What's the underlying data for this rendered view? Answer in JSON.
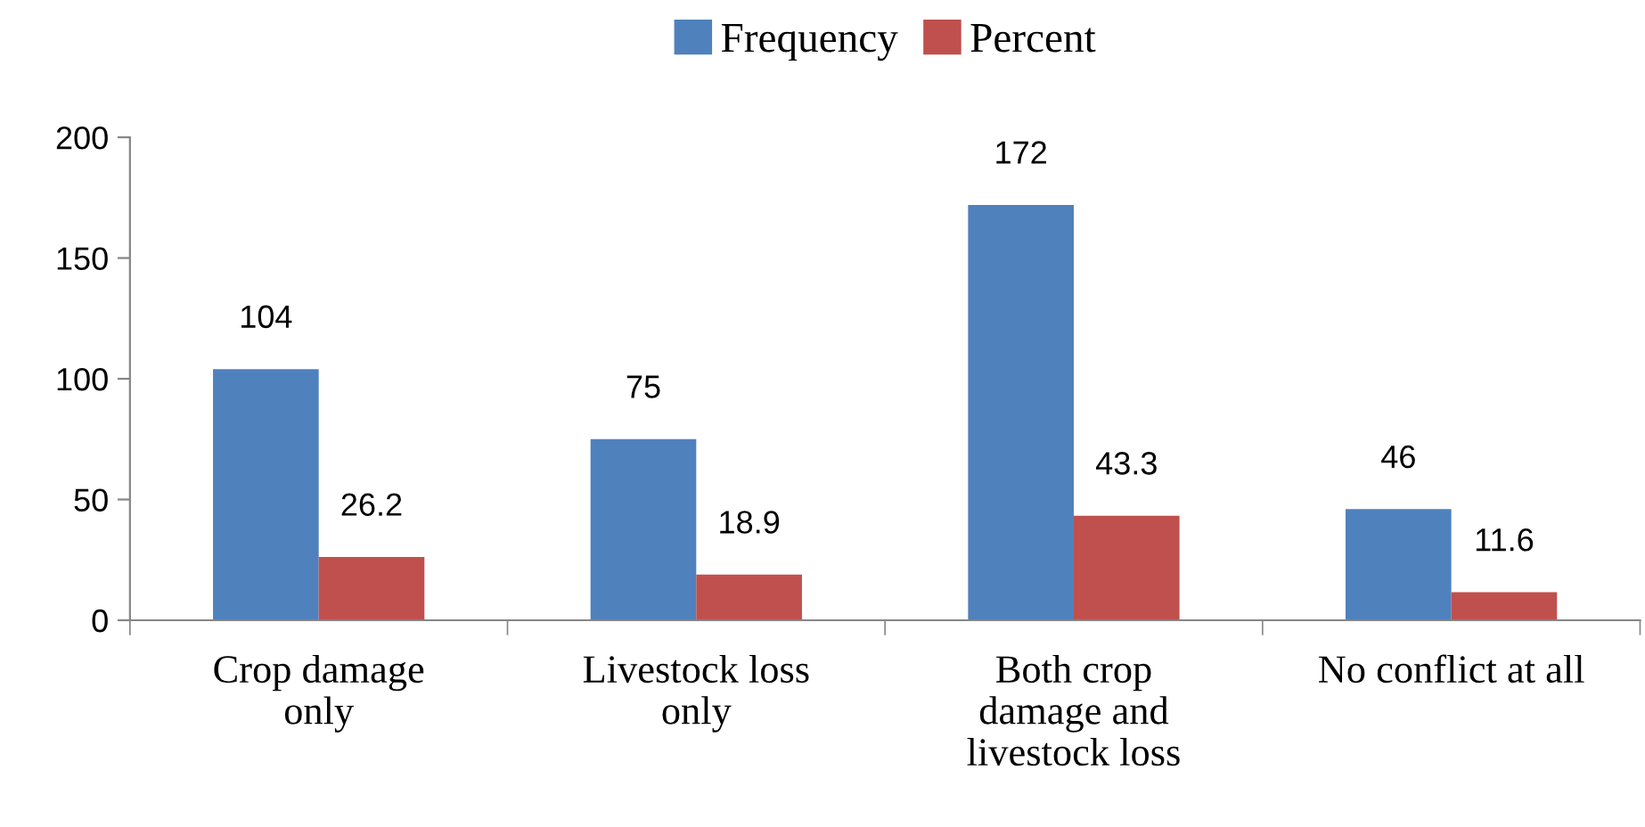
{
  "chart_data": {
    "type": "bar",
    "categories": [
      "Crop damage\nonly",
      "Livestock loss\nonly",
      "Both crop\ndamage and\nlivestock loss",
      "No conflict at all"
    ],
    "series": [
      {
        "name": "Frequency",
        "color": "#4f81bd",
        "values": [
          104,
          75,
          172,
          46
        ]
      },
      {
        "name": "Percent",
        "color": "#c0504d",
        "values": [
          26.2,
          18.9,
          43.3,
          11.6
        ]
      }
    ],
    "ylim": [
      0,
      200
    ],
    "yticks": [
      0,
      50,
      100,
      150,
      200
    ],
    "grid": false,
    "legend": "top",
    "data_labels": true
  }
}
